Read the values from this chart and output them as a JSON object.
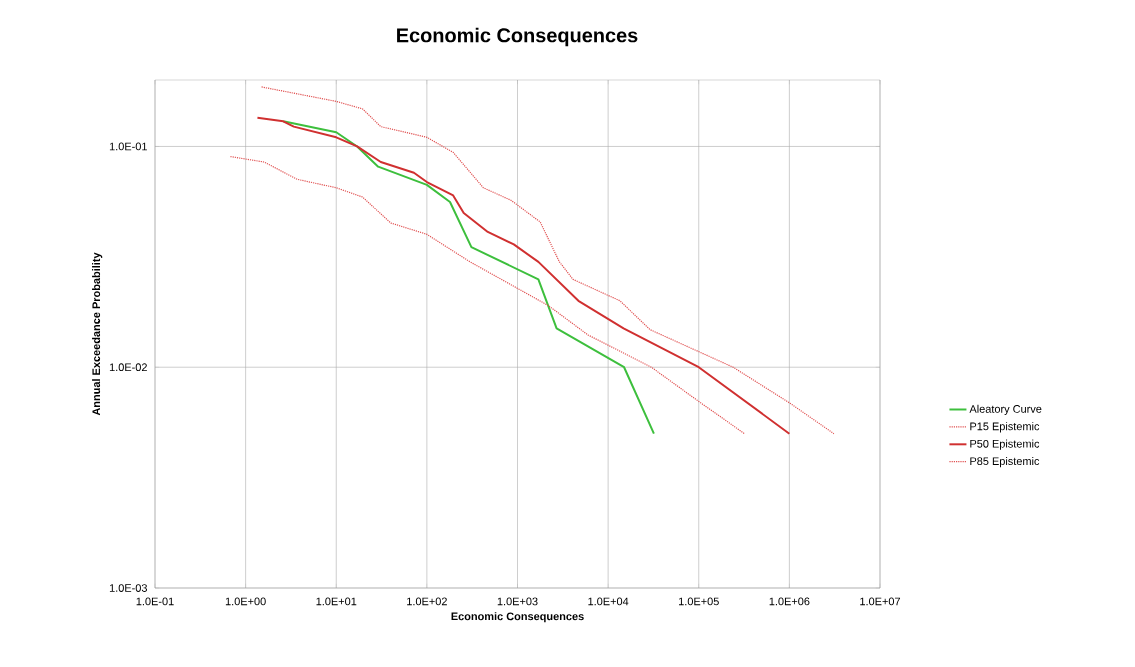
{
  "chart_data": {
    "type": "line",
    "title": "Economic Consequences",
    "xlabel": "Economic Consequences",
    "ylabel": "Annual Exceedance Probability",
    "log": "xy",
    "grid": true,
    "legend": "right",
    "xlim": [
      0.1,
      10000000
    ],
    "ylim": [
      0.001,
      0.2
    ],
    "xticks": [
      {
        "value": 0.1,
        "label": "1.0E-01"
      },
      {
        "value": 1,
        "label": "1.0E+00"
      },
      {
        "value": 10,
        "label": "1.0E+01"
      },
      {
        "value": 100,
        "label": "1.0E+02"
      },
      {
        "value": 1000,
        "label": "1.0E+03"
      },
      {
        "value": 10000,
        "label": "1.0E+04"
      },
      {
        "value": 100000,
        "label": "1.0E+05"
      },
      {
        "value": 1000000,
        "label": "1.0E+06"
      },
      {
        "value": 10000000,
        "label": "1.0E+07"
      }
    ],
    "yticks": [
      {
        "value": 0.001,
        "label": "1.0E-03"
      },
      {
        "value": 0.01,
        "label": "1.0E-02"
      },
      {
        "value": 0.1,
        "label": "1.0E-01"
      }
    ],
    "series": [
      {
        "name": "Aleatory Curve",
        "color": "#3dbf3d",
        "line_style": "solid",
        "x": [
          2.6,
          10,
          17,
          29,
          100,
          180,
          310,
          1700,
          2700,
          15000,
          32000
        ],
        "values": [
          0.13,
          0.116,
          0.1,
          0.081,
          0.067,
          0.056,
          0.035,
          0.025,
          0.015,
          0.01,
          0.005
        ]
      },
      {
        "name": "P15 Epistemic",
        "color": "#e05050",
        "line_style": "dotted",
        "x": [
          0.68,
          1.6,
          3.7,
          10,
          19.5,
          40,
          100,
          300,
          2200,
          6000,
          30000,
          100000,
          320000
        ],
        "values": [
          0.09,
          0.085,
          0.071,
          0.065,
          0.059,
          0.045,
          0.04,
          0.03,
          0.019,
          0.014,
          0.01,
          0.007,
          0.005
        ]
      },
      {
        "name": "P50 Epistemic",
        "color": "#d03030",
        "line_style": "solid",
        "x": [
          1.35,
          2.6,
          3.4,
          10,
          17,
          31,
          72,
          100,
          195,
          255,
          470,
          910,
          1700,
          4700,
          14800,
          100000,
          1000000
        ],
        "values": [
          0.135,
          0.13,
          0.123,
          0.11,
          0.1,
          0.085,
          0.076,
          0.069,
          0.06,
          0.05,
          0.041,
          0.036,
          0.03,
          0.02,
          0.015,
          0.01,
          0.005
        ]
      },
      {
        "name": "P85 Epistemic",
        "color": "#e05050",
        "line_style": "dotted",
        "x": [
          1.5,
          10,
          19.5,
          31,
          100,
          195,
          420,
          850,
          1780,
          2900,
          4100,
          13500,
          29000,
          240000,
          1000000,
          3100000
        ],
        "values": [
          0.186,
          0.16,
          0.148,
          0.123,
          0.11,
          0.094,
          0.065,
          0.057,
          0.0455,
          0.03,
          0.025,
          0.02,
          0.0148,
          0.01,
          0.0069,
          0.005
        ]
      }
    ]
  }
}
